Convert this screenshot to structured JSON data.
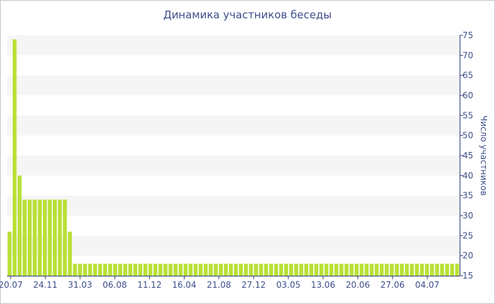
{
  "chart_data": {
    "type": "bar",
    "title": "Динамика участников беседы",
    "xlabel": "",
    "ylabel": "Число участников",
    "ylim": [
      15,
      75
    ],
    "y_ticks": [
      15,
      20,
      25,
      30,
      35,
      40,
      45,
      50,
      55,
      60,
      65,
      70,
      75
    ],
    "x_tick_labels": [
      "20.07",
      "24.11",
      "31.03",
      "06.08",
      "11.12",
      "16.04",
      "21.08",
      "27.12",
      "03.05",
      "13.06",
      "20.06",
      "27.06",
      "04.07"
    ],
    "y_axis_position": "right",
    "grid": "alternating horizontal bands",
    "bar_color": "#b9e036",
    "values": [
      26,
      74,
      40,
      34,
      34,
      34,
      34,
      34,
      34,
      34,
      34,
      34,
      26,
      18,
      18,
      18,
      18,
      18,
      18,
      18,
      18,
      18,
      18,
      18,
      18,
      18,
      18,
      18,
      18,
      18,
      18,
      18,
      18,
      18,
      18,
      18,
      18,
      18,
      18,
      18,
      18,
      18,
      18,
      18,
      18,
      18,
      18,
      18,
      18,
      18,
      18,
      18,
      18,
      18,
      18,
      18,
      18,
      18,
      18,
      18,
      18,
      18,
      18,
      18,
      18,
      18,
      18,
      18,
      18,
      18,
      18,
      18,
      18,
      18,
      18,
      18,
      18,
      18,
      18,
      18,
      18,
      18,
      18,
      18,
      18,
      18,
      18,
      18,
      18,
      18
    ]
  }
}
